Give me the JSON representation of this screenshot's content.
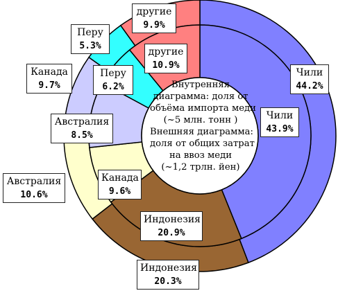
{
  "chart_data": {
    "type": "pie",
    "colors": {
      "chile": "#8080ff",
      "indonesia": "#996633",
      "australia": "#ffffcc",
      "canada": "#ccccff",
      "peru": "#33ffff",
      "other": "#ff8080"
    },
    "outer_ring": {
      "description_lines": [
        "Внешняя диаграмма:",
        "доля от общих затрат",
        "на ввоз меди",
        "(~1,2 трлн. йен)"
      ],
      "slices": [
        {
          "key": "chile",
          "label": "Чили",
          "percent_text": "44.2%",
          "value": 44.2
        },
        {
          "key": "indonesia",
          "label": "Индонезия",
          "percent_text": "20.3%",
          "value": 20.3
        },
        {
          "key": "australia",
          "label": "Австралия",
          "percent_text": "10.6%",
          "value": 10.6
        },
        {
          "key": "canada",
          "label": "Канада",
          "percent_text": "9.7%",
          "value": 9.7
        },
        {
          "key": "peru",
          "label": "Перу",
          "percent_text": "5.3%",
          "value": 5.3
        },
        {
          "key": "other",
          "label": "другие",
          "percent_text": "9.9%",
          "value": 9.9
        }
      ]
    },
    "inner_ring": {
      "description_lines": [
        "Внутренняя",
        "диаграмма: доля от",
        "объёма импорта меди",
        "(~5 млн. тонн )"
      ],
      "slices": [
        {
          "key": "chile",
          "label": "Чили",
          "percent_text": "43.9%",
          "value": 43.9
        },
        {
          "key": "indonesia",
          "label": "Индонезия",
          "percent_text": "20.9%",
          "value": 20.9
        },
        {
          "key": "australia",
          "label": "Австралия",
          "percent_text": "8.5%",
          "value": 8.5
        },
        {
          "key": "canada",
          "label": "Канада",
          "percent_text": "9.6%",
          "value": 9.6
        },
        {
          "key": "peru",
          "label": "Перу",
          "percent_text": "6.2%",
          "value": 6.2
        },
        {
          "key": "other",
          "label": "другие",
          "percent_text": "10.9%",
          "value": 10.9
        }
      ]
    }
  }
}
